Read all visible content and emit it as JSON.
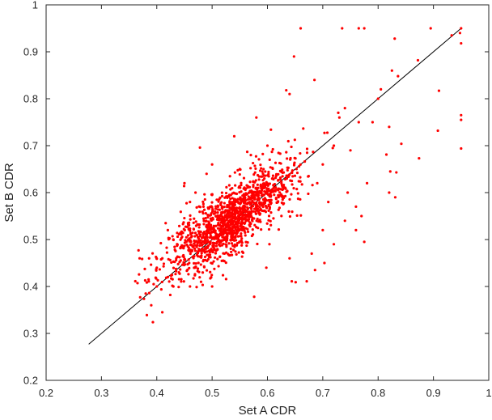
{
  "chart_data": {
    "type": "scatter",
    "xlabel": "Set A CDR",
    "ylabel": "Set B CDR",
    "xlim": [
      0.2,
      1
    ],
    "ylim": [
      0.2,
      1
    ],
    "xticks": [
      "0.2",
      "0.3",
      "0.4",
      "0.5",
      "0.6",
      "0.7",
      "0.8",
      "0.9",
      "1"
    ],
    "yticks": [
      "0.2",
      "0.3",
      "0.4",
      "0.5",
      "0.6",
      "0.7",
      "0.8",
      "0.9",
      "1"
    ],
    "grid": false,
    "marker_color": "#ff0000",
    "line_color": "#000000",
    "reference_line": {
      "x": [
        0.277,
        0.95
      ],
      "y": [
        0.277,
        0.95
      ]
    },
    "points": [
      [
        0.66,
        0.95
      ],
      [
        0.735,
        0.95
      ],
      [
        0.765,
        0.95
      ],
      [
        0.775,
        0.95
      ],
      [
        0.895,
        0.95
      ],
      [
        0.95,
        0.95
      ],
      [
        0.948,
        0.94
      ],
      [
        0.933,
        0.935
      ],
      [
        0.95,
        0.918
      ],
      [
        0.83,
        0.928
      ],
      [
        0.648,
        0.89
      ],
      [
        0.872,
        0.882
      ],
      [
        0.685,
        0.84
      ],
      [
        0.825,
        0.86
      ],
      [
        0.836,
        0.848
      ],
      [
        0.91,
        0.817
      ],
      [
        0.805,
        0.82
      ],
      [
        0.634,
        0.818
      ],
      [
        0.64,
        0.81
      ],
      [
        0.8,
        0.8
      ],
      [
        0.74,
        0.78
      ],
      [
        0.728,
        0.77
      ],
      [
        0.73,
        0.76
      ],
      [
        0.95,
        0.765
      ],
      [
        0.95,
        0.755
      ],
      [
        0.765,
        0.75
      ],
      [
        0.79,
        0.75
      ],
      [
        0.908,
        0.732
      ],
      [
        0.82,
        0.74
      ],
      [
        0.95,
        0.694
      ],
      [
        0.874,
        0.673
      ],
      [
        0.842,
        0.704
      ],
      [
        0.815,
        0.681
      ],
      [
        0.822,
        0.645
      ],
      [
        0.833,
        0.643
      ],
      [
        0.831,
        0.59
      ],
      [
        0.82,
        0.6
      ],
      [
        0.75,
        0.69
      ],
      [
        0.72,
        0.7
      ],
      [
        0.745,
        0.6
      ],
      [
        0.76,
        0.57
      ],
      [
        0.77,
        0.55
      ],
      [
        0.74,
        0.54
      ],
      [
        0.76,
        0.52
      ],
      [
        0.775,
        0.495
      ],
      [
        0.78,
        0.62
      ],
      [
        0.703,
        0.45
      ],
      [
        0.686,
        0.435
      ],
      [
        0.671,
        0.411
      ],
      [
        0.644,
        0.411
      ],
      [
        0.651,
        0.409
      ],
      [
        0.576,
        0.378
      ],
      [
        0.598,
        0.44
      ],
      [
        0.64,
        0.46
      ],
      [
        0.68,
        0.47
      ],
      [
        0.72,
        0.49
      ],
      [
        0.7,
        0.52
      ],
      [
        0.71,
        0.58
      ],
      [
        0.69,
        0.62
      ],
      [
        0.7,
        0.66
      ],
      [
        0.58,
        0.76
      ],
      [
        0.6,
        0.7
      ],
      [
        0.57,
        0.68
      ],
      [
        0.55,
        0.65
      ],
      [
        0.478,
        0.696
      ],
      [
        0.54,
        0.72
      ],
      [
        0.49,
        0.64
      ],
      [
        0.5,
        0.66
      ],
      [
        0.47,
        0.6
      ],
      [
        0.45,
        0.62
      ],
      [
        0.46,
        0.58
      ],
      [
        0.37,
        0.377
      ],
      [
        0.39,
        0.36
      ],
      [
        0.393,
        0.324
      ],
      [
        0.41,
        0.345
      ],
      [
        0.38,
        0.385
      ],
      [
        0.369,
        0.46
      ],
      [
        0.367,
        0.477
      ],
      [
        0.4,
        0.4
      ],
      [
        0.42,
        0.42
      ],
      [
        0.4,
        0.44
      ],
      [
        0.43,
        0.4
      ],
      [
        0.41,
        0.46
      ],
      [
        0.44,
        0.43
      ],
      [
        0.43,
        0.5
      ],
      [
        0.42,
        0.52
      ],
      [
        0.46,
        0.4
      ],
      [
        0.48,
        0.41
      ],
      [
        0.5,
        0.4
      ]
    ]
  }
}
